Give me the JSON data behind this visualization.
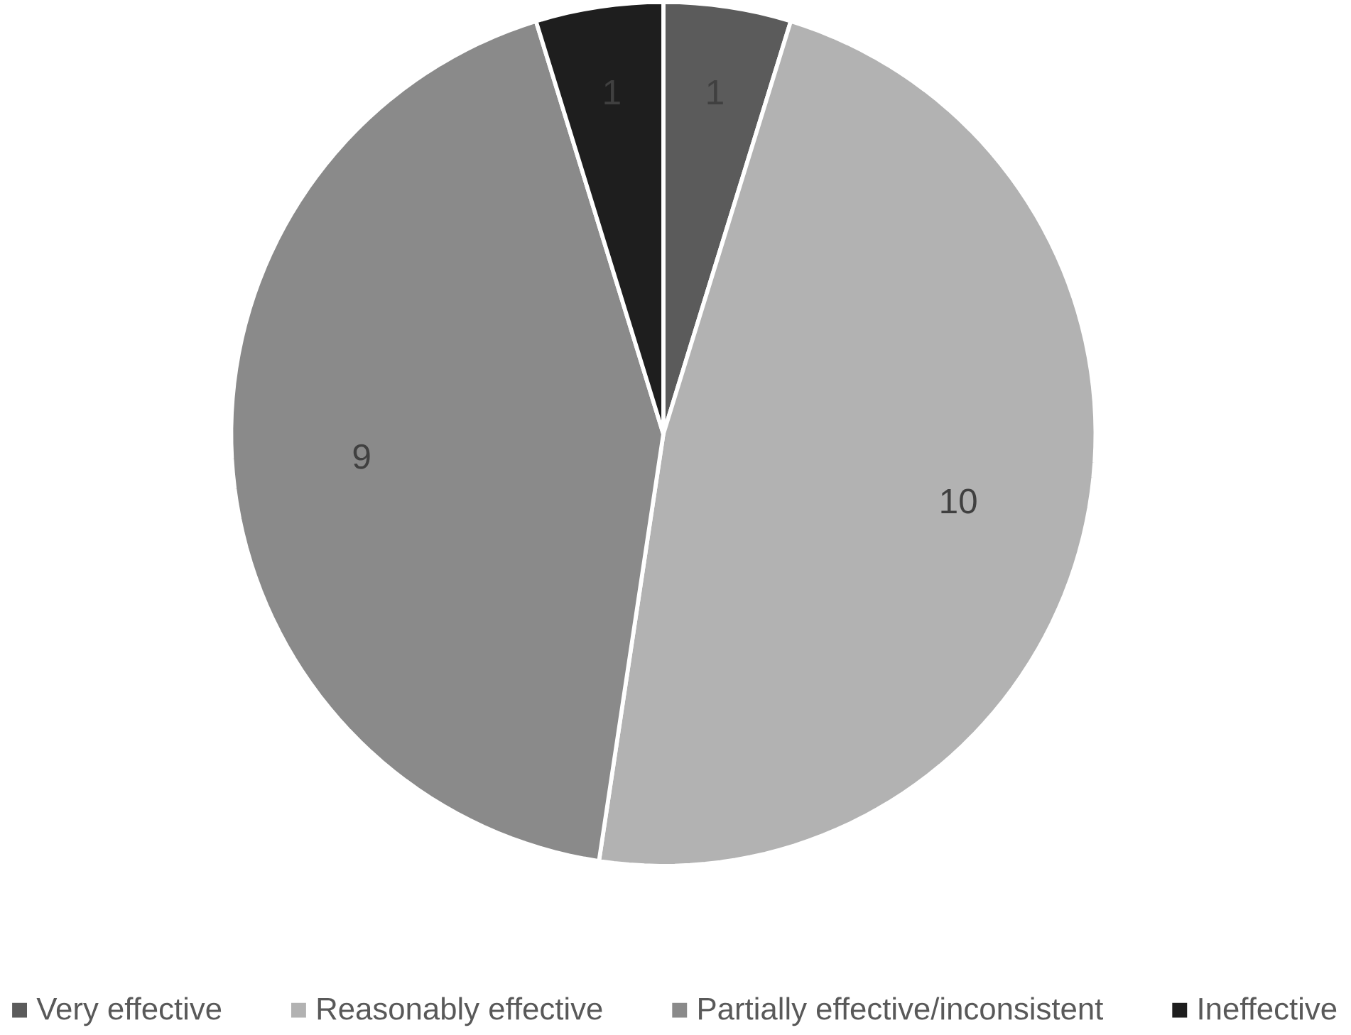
{
  "chart_data": {
    "type": "pie",
    "categories": [
      "Very effective",
      "Reasonably effective",
      "Partially effective/inconsistent",
      "Ineffective"
    ],
    "values": [
      1,
      10,
      9,
      1
    ],
    "colors": [
      "#5b5b5b",
      "#b2b2b2",
      "#8a8a8a",
      "#1e1e1e"
    ],
    "data_labels": true,
    "legend": "bottom"
  }
}
